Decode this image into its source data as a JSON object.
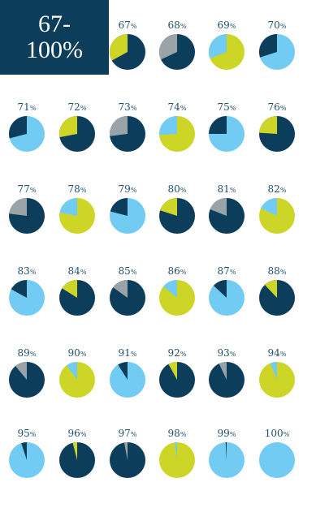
{
  "title": {
    "line1": "67-",
    "line2": "100%"
  },
  "colors": {
    "navy": "#0c3e5c",
    "sky": "#72cbf2",
    "lime": "#cdd527",
    "gray": "#9aa3a8",
    "label": "#1f4f6e"
  },
  "charts": [
    {
      "value": 67,
      "label": "67",
      "accent": "lime"
    },
    {
      "value": 68,
      "label": "68",
      "accent": "gray"
    },
    {
      "value": 69,
      "label": "69",
      "accent": "sky",
      "main": "lime"
    },
    {
      "value": 70,
      "label": "70",
      "accent": "navy",
      "main": "sky"
    },
    {
      "value": 71,
      "label": "71",
      "accent": "navy",
      "main": "sky"
    },
    {
      "value": 72,
      "label": "72",
      "accent": "lime"
    },
    {
      "value": 73,
      "label": "73",
      "accent": "gray"
    },
    {
      "value": 74,
      "label": "74",
      "accent": "sky",
      "main": "lime"
    },
    {
      "value": 75,
      "label": "75",
      "accent": "navy",
      "main": "sky"
    },
    {
      "value": 76,
      "label": "76",
      "accent": "lime"
    },
    {
      "value": 77,
      "label": "77",
      "accent": "gray"
    },
    {
      "value": 78,
      "label": "78",
      "accent": "sky",
      "main": "lime"
    },
    {
      "value": 79,
      "label": "79",
      "accent": "navy",
      "main": "sky"
    },
    {
      "value": 80,
      "label": "80",
      "accent": "lime"
    },
    {
      "value": 81,
      "label": "81",
      "accent": "gray"
    },
    {
      "value": 82,
      "label": "82",
      "accent": "sky",
      "main": "lime"
    },
    {
      "value": 83,
      "label": "83",
      "accent": "navy",
      "main": "sky"
    },
    {
      "value": 84,
      "label": "84",
      "accent": "lime"
    },
    {
      "value": 85,
      "label": "85",
      "accent": "gray"
    },
    {
      "value": 86,
      "label": "86",
      "accent": "sky",
      "main": "lime"
    },
    {
      "value": 87,
      "label": "87",
      "accent": "navy",
      "main": "sky"
    },
    {
      "value": 88,
      "label": "88",
      "accent": "lime"
    },
    {
      "value": 89,
      "label": "89",
      "accent": "gray"
    },
    {
      "value": 90,
      "label": "90",
      "accent": "sky",
      "main": "lime"
    },
    {
      "value": 91,
      "label": "91",
      "accent": "navy",
      "main": "sky"
    },
    {
      "value": 92,
      "label": "92",
      "accent": "lime"
    },
    {
      "value": 93,
      "label": "93",
      "accent": "gray"
    },
    {
      "value": 94,
      "label": "94",
      "accent": "sky",
      "main": "lime"
    },
    {
      "value": 95,
      "label": "95",
      "accent": "navy",
      "main": "sky"
    },
    {
      "value": 96,
      "label": "96",
      "accent": "lime"
    },
    {
      "value": 97,
      "label": "97",
      "accent": "gray"
    },
    {
      "value": 98,
      "label": "98",
      "accent": "sky",
      "main": "lime"
    },
    {
      "value": 99,
      "label": "99",
      "accent": "navy",
      "main": "sky"
    },
    {
      "value": 100,
      "label": "100",
      "accent": "sky",
      "main": "sky"
    }
  ]
}
